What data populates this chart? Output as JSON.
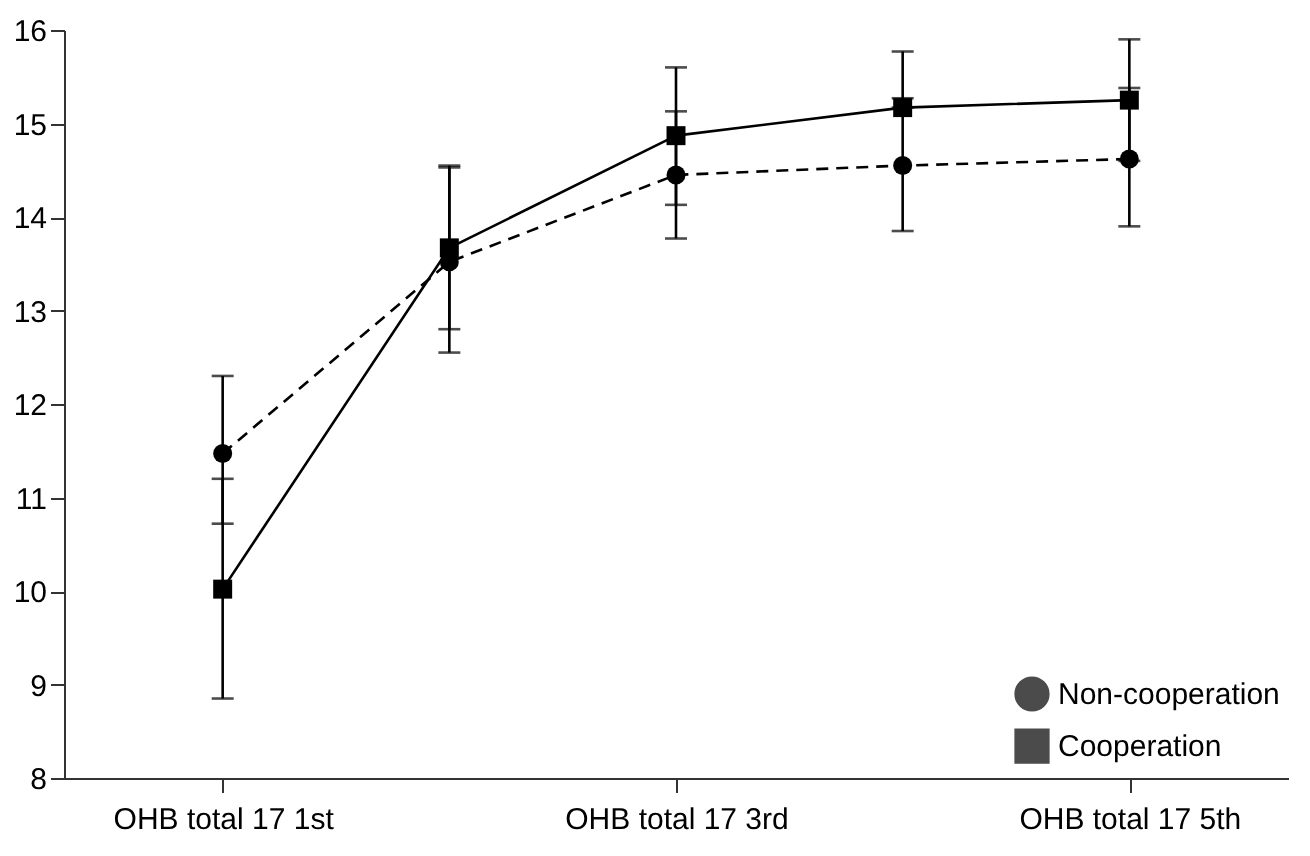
{
  "chart_data": {
    "type": "line",
    "categories": [
      "OHB total 17 1st",
      null,
      "OHB total 17 3rd",
      null,
      "OHB total 17 5th"
    ],
    "series": [
      {
        "name": "Non-cooperation",
        "color": "#000000",
        "marker": "circle",
        "line_style": "dashed",
        "values": [
          11.47,
          13.52,
          14.45,
          14.55,
          14.62
        ],
        "errors": [
          [
            10.72,
            12.3
          ],
          [
            12.55,
            14.55
          ],
          [
            13.77,
            15.13
          ],
          [
            13.85,
            15.27
          ],
          [
            13.9,
            15.38
          ]
        ]
      },
      {
        "name": "Cooperation",
        "color": "#000000",
        "marker": "square",
        "line_style": "solid",
        "values": [
          10.02,
          13.67,
          14.87,
          15.17,
          15.25
        ],
        "errors": [
          [
            8.85,
            11.2
          ],
          [
            12.8,
            14.53
          ],
          [
            14.13,
            15.6
          ],
          [
            15.17,
            15.77
          ],
          [
            14.6,
            15.9
          ]
        ]
      }
    ],
    "ylim": [
      8,
      16
    ],
    "yticks": [
      8,
      9,
      10,
      11,
      12,
      13,
      14,
      15,
      16
    ],
    "grid": false,
    "legend": "bottom right"
  }
}
